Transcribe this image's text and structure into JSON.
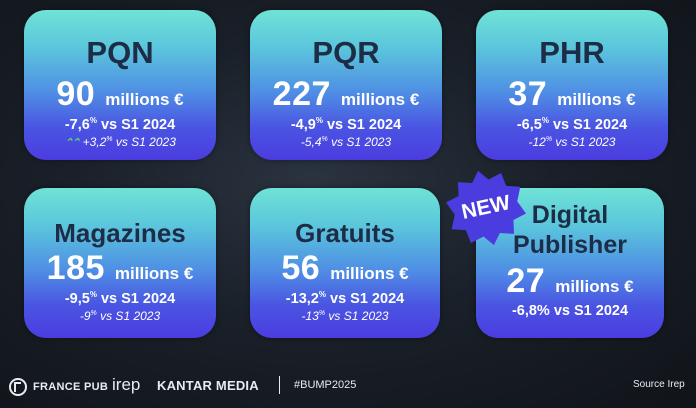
{
  "cards": [
    {
      "title": "PQN",
      "value": "90",
      "unit": "millions €",
      "vs_main_value": "-7,6",
      "vs_main_sup": "%",
      "vs_main_label": " vs S1 2024",
      "vs_prev_arrow": "⌃⌃",
      "vs_prev_value": "+3,2",
      "vs_prev_sup": "%",
      "vs_prev_label": " vs S1 2023"
    },
    {
      "title": "PQR",
      "value": "227",
      "unit": "millions €",
      "vs_main_value": "-4,9",
      "vs_main_sup": "%",
      "vs_main_label": " vs S1 2024",
      "vs_prev_value": "-5,4",
      "vs_prev_sup": "%",
      "vs_prev_label": " vs S1 2023"
    },
    {
      "title": "PHR",
      "value": "37",
      "unit": "millions €",
      "vs_main_value": "-6,5",
      "vs_main_sup": "%",
      "vs_main_label": " vs S1 2024",
      "vs_prev_value": "-12",
      "vs_prev_sup": "%",
      "vs_prev_label": " vs S1 2023"
    },
    {
      "title": "Magazines",
      "value": "185",
      "unit": "millions €",
      "vs_main_value": "-9,5",
      "vs_main_sup": "%",
      "vs_main_label": " vs S1 2024",
      "vs_prev_value": "-9",
      "vs_prev_sup": "%",
      "vs_prev_label": " vs S1 2023"
    },
    {
      "title": "Gratuits",
      "value": "56",
      "unit": "millions €",
      "vs_main_value": "-13,2",
      "vs_main_sup": "%",
      "vs_main_label": " vs S1 2024",
      "vs_prev_value": "-13",
      "vs_prev_sup": "%",
      "vs_prev_label": " vs S1 2023"
    },
    {
      "title_line1": "Digital",
      "title_line2": "Publisher",
      "value": "27",
      "unit": "millions €",
      "vs_main_value": "-6,8%",
      "vs_main_label": " vs S1 2024"
    }
  ],
  "badge": "NEW",
  "footer": {
    "francepub": "FRANCE PUB",
    "irep": "irep",
    "kantar": "KANTAR MEDIA",
    "hashtag": "#BUMP2025",
    "source": "Source Irep"
  },
  "colors": {
    "card_top": "#6fe3d6",
    "card_bottom": "#4b3ce0",
    "title": "#1d2d46",
    "up_arrow": "#57d26e"
  }
}
